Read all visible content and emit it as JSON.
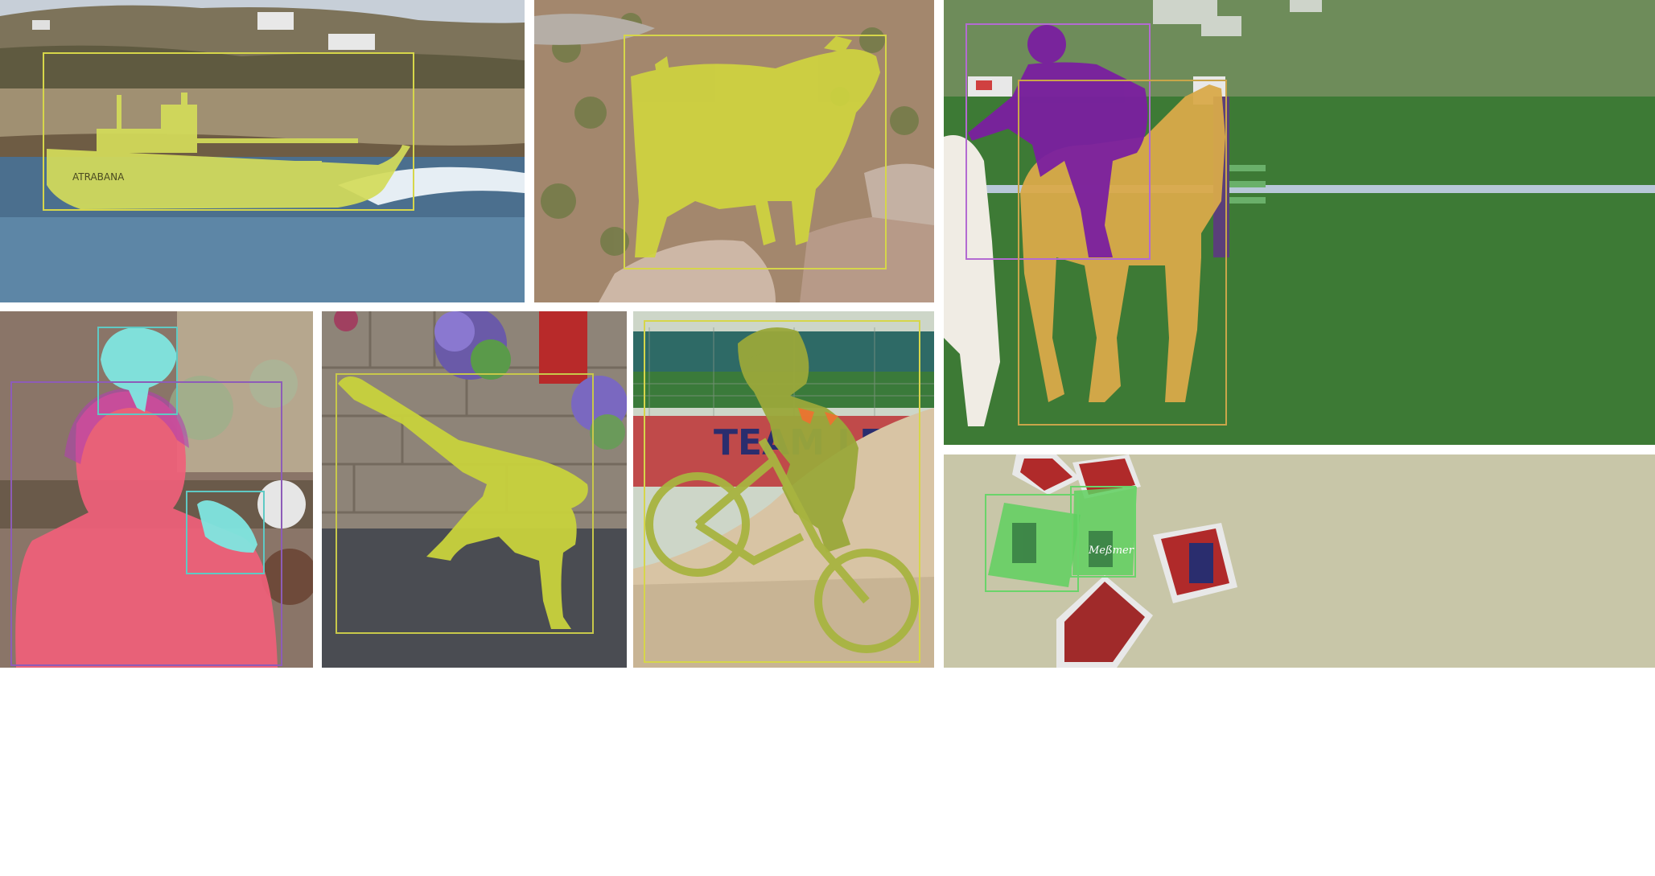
{
  "panels": {
    "boat": {
      "hull_text": "ATRABANA",
      "mask_color": "#d4dc5a",
      "box_color": "#d6d64a"
    },
    "goat": {
      "mask_color": "#cfd43f",
      "box_color": "#d6d64a"
    },
    "horse": {
      "sign_text": "",
      "rider_color": "#7a1fa0",
      "horse_color": "#d9aa4a",
      "box_color_rider": "#b36bd1",
      "box_color_horse": "#c9a54a"
    },
    "girl": {
      "girl_color": "#f0607a",
      "bird_color": "#7fe6e0",
      "box_color_girl": "#8d5cb8",
      "box_color_bird": "#5fc9c4"
    },
    "dancer": {
      "mask_color": "#c8d23c",
      "box_color": "#c8c84a"
    },
    "bmx": {
      "banner_text": "TEAM LE MARRO",
      "mask_color": "#9aa83a",
      "box_color": "#d6d64a"
    },
    "tea": {
      "brand_text": "Meßmer",
      "mask_color": "#5fd05f",
      "box_color": "#6ad46a"
    }
  }
}
